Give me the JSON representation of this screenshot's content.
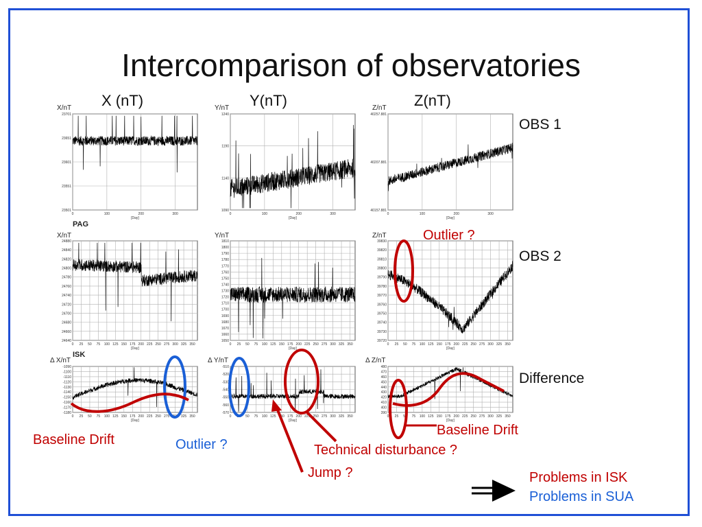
{
  "slide": {
    "title": "Intercomparison of observatories"
  },
  "columns": [
    "X (nT)",
    "Y(nT)",
    "Z(nT)"
  ],
  "rows": [
    "OBS 1",
    "OBS 2",
    "Difference"
  ],
  "axis_units": {
    "x_top": "X/nT",
    "y_top": "Y/nT",
    "z_top": "Z/nT",
    "x_mid": "X/nT",
    "y_mid": "Y/nT",
    "z_mid": "Z/nT",
    "x_bot": "Δ X/nT",
    "y_bot": "Δ Y/nT",
    "z_bot": "Δ Z/nT",
    "xaxis": "[Day]"
  },
  "station_labels": {
    "pag": "PAG",
    "isk": "ISK"
  },
  "annotations": {
    "outlier_top": "Outlier ?",
    "baseline_drift_left": "Baseline Drift",
    "outlier_bottom": "Outlier ?",
    "technical_disturbance": "Technical disturbance ?",
    "jump": "Jump ?",
    "baseline_drift_right": "Baseline Drift"
  },
  "conclusion": {
    "line1": "Problems in ISK",
    "line2": "Problems in SUA"
  },
  "colors": {
    "frame": "#1f4fd6",
    "annotation_red": "#c00000",
    "annotation_blue": "#1a5fd6",
    "trace": "#000000",
    "grid": "#b0b0b0"
  },
  "chart_data": [
    {
      "type": "line",
      "id": "x1",
      "xlim": [
        0,
        365
      ],
      "x_ticks": [
        "0",
        "100",
        "200",
        "300"
      ],
      "y_ticks": [
        "23701",
        "23651",
        "23601",
        "23551",
        "23501"
      ]
    },
    {
      "type": "line",
      "id": "y1",
      "xlim": [
        0,
        365
      ],
      "x_ticks": [
        "0",
        "100",
        "200",
        "300"
      ],
      "y_ticks": [
        "1240",
        "1190",
        "1140",
        "1090"
      ]
    },
    {
      "type": "line",
      "id": "z1",
      "xlim": [
        0,
        365
      ],
      "x_ticks": [
        "0",
        "100",
        "200",
        "300"
      ],
      "y_ticks": [
        "40257.881",
        "40207.881",
        "40157.881"
      ]
    },
    {
      "type": "line",
      "id": "x2",
      "xlim": [
        0,
        365
      ],
      "x_ticks": [
        "0",
        "25",
        "50",
        "75",
        "100",
        "125",
        "150",
        "175",
        "200",
        "225",
        "250",
        "275",
        "300",
        "325",
        "350"
      ],
      "y_ticks": [
        "24880",
        "24840",
        "24820",
        "24800",
        "24780",
        "24760",
        "24740",
        "24720",
        "24700",
        "24680",
        "24660",
        "24640"
      ]
    },
    {
      "type": "line",
      "id": "y2",
      "xlim": [
        0,
        365
      ],
      "x_ticks": [
        "0",
        "25",
        "50",
        "75",
        "100",
        "125",
        "150",
        "175",
        "200",
        "225",
        "250",
        "275",
        "300",
        "325",
        "350"
      ],
      "y_ticks": [
        "1810",
        "1800",
        "1790",
        "1780",
        "1770",
        "1760",
        "1750",
        "1740",
        "1730",
        "1720",
        "1710",
        "1700",
        "1690",
        "1680",
        "1670",
        "1660",
        "1650"
      ]
    },
    {
      "type": "line",
      "id": "z2",
      "xlim": [
        0,
        365
      ],
      "x_ticks": [
        "0",
        "25",
        "50",
        "75",
        "100",
        "125",
        "150",
        "175",
        "200",
        "225",
        "250",
        "275",
        "300",
        "325",
        "350"
      ],
      "y_ticks": [
        "39830",
        "39820",
        "39810",
        "39800",
        "39790",
        "39780",
        "39770",
        "39760",
        "39750",
        "39740",
        "39730",
        "39720"
      ]
    },
    {
      "type": "line",
      "id": "x3",
      "xlim": [
        0,
        365
      ],
      "x_ticks": [
        "0",
        "25",
        "50",
        "75",
        "100",
        "125",
        "150",
        "175",
        "200",
        "225",
        "250",
        "275",
        "300",
        "325",
        "350"
      ],
      "y_ticks": [
        "-1090",
        "-1100",
        "-1110",
        "-1120",
        "-1130",
        "-1140",
        "-1150",
        "-1160",
        "-1170",
        "-1180"
      ]
    },
    {
      "type": "line",
      "id": "y3",
      "xlim": [
        0,
        365
      ],
      "x_ticks": [
        "0",
        "25",
        "50",
        "75",
        "100",
        "125",
        "150",
        "175",
        "200",
        "225",
        "250",
        "275",
        "300",
        "325",
        "350"
      ],
      "y_ticks": [
        "-510",
        "-520",
        "-530",
        "-540",
        "-550",
        "-560",
        "-570"
      ]
    },
    {
      "type": "line",
      "id": "z3",
      "xlim": [
        0,
        365
      ],
      "x_ticks": [
        "0",
        "25",
        "50",
        "75",
        "100",
        "125",
        "150",
        "175",
        "200",
        "225",
        "250",
        "275",
        "300",
        "325",
        "350"
      ],
      "y_ticks": [
        "480",
        "470",
        "460",
        "450",
        "440",
        "430",
        "420",
        "410",
        "400",
        "390"
      ]
    }
  ]
}
